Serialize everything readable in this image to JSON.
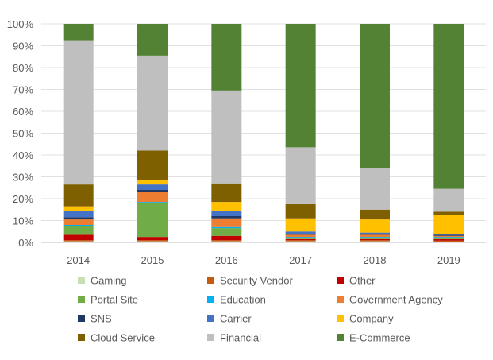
{
  "chart_data": {
    "type": "bar",
    "stacked": true,
    "percent": true,
    "categories": [
      "2014",
      "2015",
      "2016",
      "2017",
      "2018",
      "2019"
    ],
    "ylim": [
      0,
      100
    ],
    "yticks": [
      "0%",
      "10%",
      "20%",
      "30%",
      "40%",
      "50%",
      "60%",
      "70%",
      "80%",
      "90%",
      "100%"
    ],
    "grid": "horizontal",
    "legend_position": "bottom",
    "series": [
      {
        "name": "Gaming",
        "color": "#c6e0b4",
        "values": [
          0.5,
          0.5,
          0.5,
          0.5,
          0.5,
          0.3
        ]
      },
      {
        "name": "Security Vendor",
        "color": "#c55a11",
        "values": [
          0.5,
          0.5,
          0.5,
          0.5,
          0.5,
          0.5
        ]
      },
      {
        "name": "Other",
        "color": "#c00000",
        "values": [
          2.5,
          1.5,
          2.0,
          0.5,
          0.5,
          0.7
        ]
      },
      {
        "name": "Portal Site",
        "color": "#70ad47",
        "values": [
          4.0,
          15.5,
          3.5,
          0.5,
          0.5,
          0.5
        ]
      },
      {
        "name": "Education",
        "color": "#00b0f0",
        "values": [
          0.5,
          0.5,
          0.5,
          0.5,
          0.5,
          0.5
        ]
      },
      {
        "name": "Government Agency",
        "color": "#ed7d31",
        "values": [
          2.5,
          4.5,
          4.0,
          1.0,
          1.0,
          0.5
        ]
      },
      {
        "name": "SNS",
        "color": "#203864",
        "values": [
          1.0,
          1.0,
          1.0,
          0.5,
          0.5,
          0.5
        ]
      },
      {
        "name": "Carrier",
        "color": "#4472c4",
        "values": [
          3.0,
          2.5,
          2.5,
          1.0,
          0.5,
          0.5
        ]
      },
      {
        "name": "Company",
        "color": "#ffc000",
        "values": [
          2.0,
          2.0,
          4.0,
          6.0,
          6.0,
          8.5
        ]
      },
      {
        "name": "Cloud Service",
        "color": "#7f6000",
        "values": [
          10.0,
          13.5,
          8.5,
          6.5,
          4.5,
          1.5
        ]
      },
      {
        "name": "Financial",
        "color": "#bfbfbf",
        "values": [
          66.0,
          43.5,
          42.5,
          26.0,
          19.0,
          10.5
        ]
      },
      {
        "name": "E-Commerce",
        "color": "#548235",
        "values": [
          7.5,
          14.5,
          30.5,
          56.5,
          66.0,
          75.5
        ]
      }
    ]
  }
}
